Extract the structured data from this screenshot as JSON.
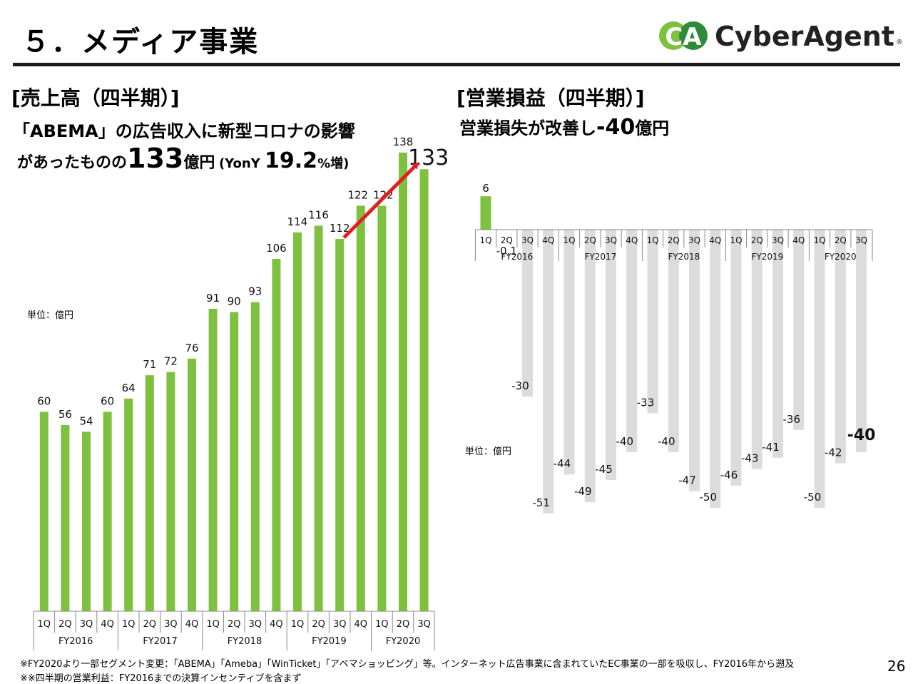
{
  "header": {
    "page_title": "５．メディア事業",
    "logo_text": "CyberAgent",
    "logo_mark": "CA",
    "logo_reg": "®"
  },
  "left_panel": {
    "heading": "[売上高（四半期）]",
    "line2": "「ABEMA」の広告収入に新型コロナの影響",
    "line3_a": "があったものの",
    "line3_b": "133",
    "line3_c": "億円",
    "line3_d": "(YonY ",
    "line3_e": "19.2",
    "line3_f": "%増)",
    "unit": "単位：億円"
  },
  "right_panel": {
    "heading": "[営業損益（四半期）]",
    "line2_a": "営業損失が改善し",
    "line2_b": "-40",
    "line2_c": "億円",
    "unit": "単位：億円"
  },
  "footnotes": {
    "note1": "※FY2020より一部セグメント変更：「ABEMA」「Ameba」「WinTicket」「アベマショッピング」等。インターネット広告事業に含まれていたEC事業の一部を吸収し、FY2016年から遡及",
    "note2": "※※四半期の営業利益：FY2016までの決算インセンティブを含まず"
  },
  "page_number": "26",
  "colors": {
    "green": "#7dc13e",
    "gray": "#dcdcdc",
    "red": "#e02020",
    "axis": "#888888"
  },
  "chart_data": [
    {
      "type": "bar",
      "title": "売上高（四半期）",
      "unit": "億円",
      "categories": [
        "1Q",
        "2Q",
        "3Q",
        "4Q",
        "1Q",
        "2Q",
        "3Q",
        "4Q",
        "1Q",
        "2Q",
        "3Q",
        "4Q",
        "1Q",
        "2Q",
        "3Q",
        "4Q",
        "1Q",
        "2Q",
        "3Q"
      ],
      "groups": [
        {
          "label": "FY2016",
          "count": 4
        },
        {
          "label": "FY2017",
          "count": 4
        },
        {
          "label": "FY2018",
          "count": 4
        },
        {
          "label": "FY2019",
          "count": 4
        },
        {
          "label": "FY2020",
          "count": 3
        }
      ],
      "values": [
        60,
        56,
        54,
        60,
        64,
        71,
        72,
        76,
        91,
        90,
        93,
        106,
        114,
        116,
        112,
        122,
        122,
        138,
        133
      ],
      "highlight_label": "133",
      "ylim": [
        0,
        140
      ]
    },
    {
      "type": "bar",
      "title": "営業損益（四半期）",
      "unit": "億円",
      "categories": [
        "1Q",
        "2Q",
        "3Q",
        "4Q",
        "1Q",
        "2Q",
        "3Q",
        "4Q",
        "1Q",
        "2Q",
        "3Q",
        "4Q",
        "1Q",
        "2Q",
        "3Q",
        "4Q",
        "1Q",
        "2Q",
        "3Q"
      ],
      "groups": [
        {
          "label": "FY2016",
          "count": 4
        },
        {
          "label": "FY2017",
          "count": 4
        },
        {
          "label": "FY2018",
          "count": 4
        },
        {
          "label": "FY2019",
          "count": 4
        },
        {
          "label": "FY2020",
          "count": 3
        }
      ],
      "values": [
        6,
        -0.1,
        -30,
        -51,
        -44,
        -49,
        -45,
        -40,
        -33,
        -40,
        -47,
        -50,
        -46,
        -43,
        -41,
        -36,
        -50,
        -42,
        -40
      ],
      "labels": [
        "6",
        "-0.1",
        "-30",
        "-51",
        "-44",
        "-49",
        "-45",
        "-40",
        "-33",
        "-40",
        "-47",
        "-50",
        "-46",
        "-43",
        "-41",
        "-36",
        "-50",
        "-42",
        "-40"
      ],
      "ylim": [
        -55,
        10
      ]
    }
  ]
}
